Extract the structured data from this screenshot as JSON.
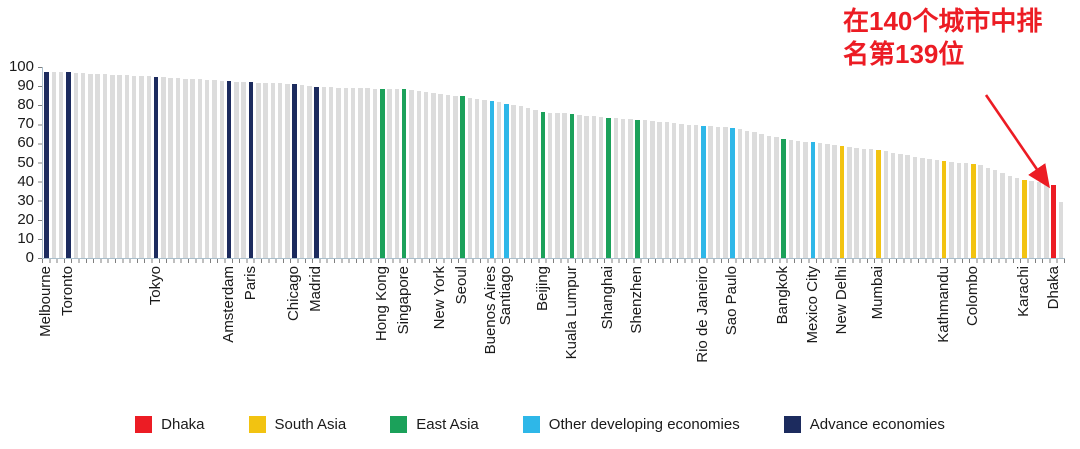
{
  "annotation": {
    "line1": "在140个城市中排",
    "line2": "名第139位",
    "color": "#ec1c24"
  },
  "colors": {
    "default": "#dcdcdc",
    "dhaka": "#ec1c24",
    "south_asia": "#f2c311",
    "east_asia": "#1ba15a",
    "other_developing": "#2eb7e8",
    "advance": "#1c2b5e",
    "axis": "#aabfcc",
    "tick": "#7f7f7f"
  },
  "legend": {
    "items": [
      {
        "label": "Dhaka",
        "group": "dhaka"
      },
      {
        "label": "South Asia",
        "group": "south_asia"
      },
      {
        "label": "East Asia",
        "group": "east_asia"
      },
      {
        "label": "Other developing economies",
        "group": "other_developing"
      },
      {
        "label": "Advance economies",
        "group": "advance"
      }
    ]
  },
  "chart_data": {
    "type": "bar",
    "title": "",
    "xlabel": "",
    "ylabel": "",
    "ylim": [
      0,
      100
    ],
    "y_tick_labels": [
      "100",
      "90",
      "80",
      "70",
      "60",
      "50",
      "40",
      "30",
      "20",
      "10",
      "0"
    ],
    "n_bars": 140,
    "grid": false,
    "values": [
      97.5,
      97.4,
      97.3,
      97.2,
      97.0,
      96.8,
      96.6,
      96.4,
      96.2,
      96.0,
      95.8,
      95.7,
      95.5,
      95.3,
      95.1,
      94.9,
      94.6,
      94.4,
      94.2,
      93.9,
      93.7,
      93.5,
      93.3,
      93.0,
      92.8,
      92.6,
      92.4,
      92.2,
      92.0,
      91.8,
      91.7,
      91.5,
      91.4,
      91.2,
      91.1,
      90.6,
      90.1,
      89.6,
      89.4,
      89.3,
      89.2,
      89.1,
      89.0,
      88.9,
      88.8,
      88.7,
      88.6,
      88.5,
      88.4,
      88.4,
      88.0,
      87.5,
      87.0,
      86.5,
      86.1,
      85.6,
      85.1,
      84.6,
      84.0,
      83.4,
      82.8,
      82.2,
      81.6,
      80.9,
      80.2,
      79.5,
      78.5,
      77.5,
      76.5,
      76.2,
      75.9,
      75.7,
      75.4,
      75.0,
      74.6,
      74.2,
      73.8,
      73.4,
      73.2,
      72.9,
      72.7,
      72.5,
      72.1,
      71.8,
      71.4,
      71.1,
      70.7,
      70.3,
      69.9,
      69.5,
      69.1,
      68.9,
      68.7,
      68.5,
      68.3,
      67.5,
      66.7,
      65.8,
      65.0,
      64.1,
      63.2,
      62.4,
      61.9,
      61.4,
      60.9,
      60.5,
      60.0,
      59.5,
      59.0,
      58.6,
      58.2,
      57.7,
      57.3,
      56.9,
      56.5,
      55.8,
      55.1,
      54.4,
      53.7,
      53.0,
      52.4,
      51.8,
      51.2,
      50.6,
      50.3,
      50.0,
      49.7,
      49.4,
      48.5,
      47.3,
      46.0,
      44.6,
      43.2,
      41.9,
      40.7,
      40.2,
      39.7,
      39.1,
      38.5,
      29.2
    ],
    "highlighted_cities": [
      {
        "rank": 1,
        "city": "Melbourne",
        "value": 97.5,
        "group": "advance"
      },
      {
        "rank": 4,
        "city": "Toronto",
        "value": 97.2,
        "group": "advance"
      },
      {
        "rank": 16,
        "city": "Tokyo",
        "value": 94.9,
        "group": "advance"
      },
      {
        "rank": 26,
        "city": "Amsterdam",
        "value": 92.6,
        "group": "advance"
      },
      {
        "rank": 29,
        "city": "Paris",
        "value": 92.0,
        "group": "advance"
      },
      {
        "rank": 35,
        "city": "Chicago",
        "value": 91.1,
        "group": "advance"
      },
      {
        "rank": 38,
        "city": "Madrid",
        "value": 89.6,
        "group": "advance"
      },
      {
        "rank": 47,
        "city": "Hong Kong",
        "value": 88.6,
        "group": "east_asia"
      },
      {
        "rank": 50,
        "city": "Singapore",
        "value": 88.4,
        "group": "east_asia"
      },
      {
        "rank": 55,
        "city": "New York",
        "value": 86.1,
        "group": "default"
      },
      {
        "rank": 58,
        "city": "Seoul",
        "value": 84.6,
        "group": "east_asia"
      },
      {
        "rank": 62,
        "city": "Buenos Aires",
        "value": 82.2,
        "group": "other_developing"
      },
      {
        "rank": 64,
        "city": "Santiago",
        "value": 80.9,
        "group": "other_developing"
      },
      {
        "rank": 69,
        "city": "Beijing",
        "value": 76.5,
        "group": "east_asia"
      },
      {
        "rank": 73,
        "city": "Kuala Lumpur",
        "value": 75.4,
        "group": "east_asia"
      },
      {
        "rank": 78,
        "city": "Shanghai",
        "value": 73.4,
        "group": "east_asia"
      },
      {
        "rank": 82,
        "city": "Shenzhen",
        "value": 72.5,
        "group": "east_asia"
      },
      {
        "rank": 91,
        "city": "Rio de Janeiro",
        "value": 69.1,
        "group": "other_developing"
      },
      {
        "rank": 95,
        "city": "Sao Paulo",
        "value": 68.3,
        "group": "other_developing"
      },
      {
        "rank": 102,
        "city": "Bangkok",
        "value": 62.4,
        "group": "east_asia"
      },
      {
        "rank": 106,
        "city": "Mexico City",
        "value": 60.5,
        "group": "other_developing"
      },
      {
        "rank": 110,
        "city": "New Delhi",
        "value": 58.6,
        "group": "south_asia"
      },
      {
        "rank": 115,
        "city": "Mumbai",
        "value": 56.5,
        "group": "south_asia"
      },
      {
        "rank": 124,
        "city": "Kathmandu",
        "value": 50.6,
        "group": "south_asia"
      },
      {
        "rank": 128,
        "city": "Colombo",
        "value": 49.4,
        "group": "south_asia"
      },
      {
        "rank": 135,
        "city": "Karachi",
        "value": 40.7,
        "group": "south_asia"
      },
      {
        "rank": 139,
        "city": "Dhaka",
        "value": 38.5,
        "group": "dhaka"
      }
    ]
  }
}
